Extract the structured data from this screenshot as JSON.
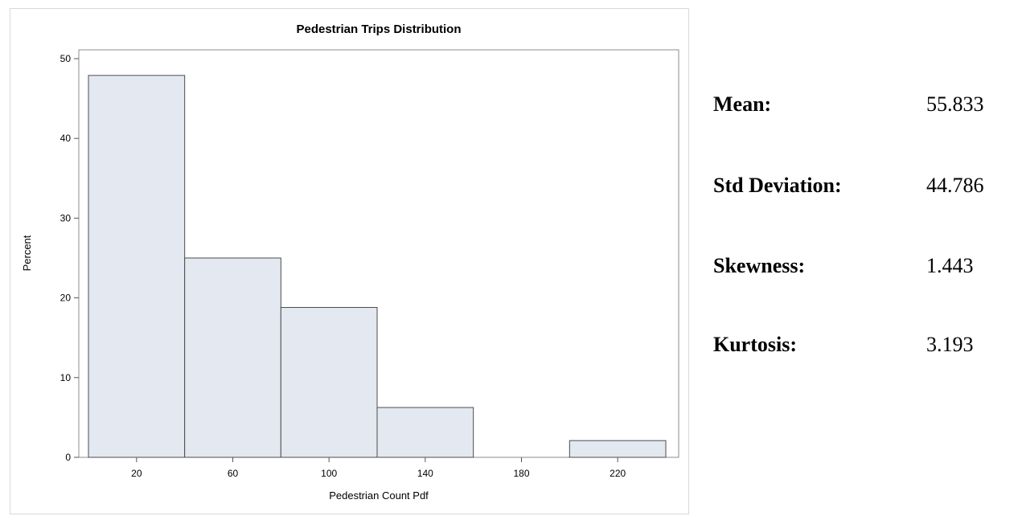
{
  "chart_data": {
    "type": "bar",
    "title": "Pedestrian Trips Distribution",
    "xlabel": "Pedestrian Count Pdf",
    "ylabel": "Percent",
    "bins": [
      {
        "from": 0,
        "to": 40,
        "value": 47.9
      },
      {
        "from": 40,
        "to": 80,
        "value": 25.0
      },
      {
        "from": 80,
        "to": 120,
        "value": 18.8
      },
      {
        "from": 120,
        "to": 160,
        "value": 6.25
      },
      {
        "from": 160,
        "to": 200,
        "value": 0
      },
      {
        "from": 200,
        "to": 240,
        "value": 2.1
      }
    ],
    "x_ticks": [
      20,
      60,
      100,
      140,
      180,
      220
    ],
    "y_ticks": [
      0,
      10,
      20,
      30,
      40,
      50
    ],
    "xlim": [
      0,
      240
    ],
    "ylim": [
      0,
      50
    ],
    "grid": false,
    "bar_fill": "#e3e8f1",
    "bar_stroke": "#4d4d4d"
  },
  "stats": [
    {
      "label": "Mean:",
      "value": "55.833"
    },
    {
      "label": "Std Deviation:",
      "value": "44.786"
    },
    {
      "label": "Skewness:",
      "value": "1.443"
    },
    {
      "label": "Kurtosis:",
      "value": "3.193"
    }
  ]
}
